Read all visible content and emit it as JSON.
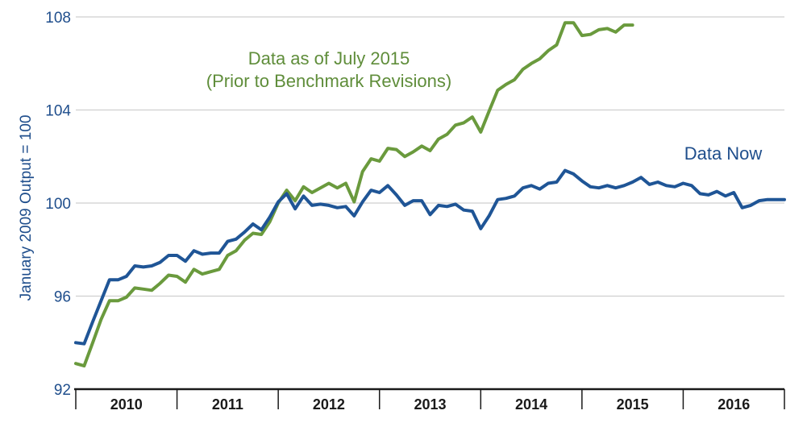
{
  "chart_data": {
    "type": "line",
    "ylabel": "January 2009 Output = 100",
    "ylim": [
      92,
      108
    ],
    "yticks": [
      92,
      96,
      100,
      104,
      108
    ],
    "xlim": [
      2009.5,
      2016.5
    ],
    "year_labels": [
      "2010",
      "2011",
      "2012",
      "2013",
      "2014",
      "2015",
      "2016"
    ],
    "year_ticks": [
      2010,
      2011,
      2012,
      2013,
      2014,
      2015,
      2016
    ],
    "grid": "horizontal",
    "annotations": [
      {
        "lines": [
          "Data as of July 2015",
          "(Prior to Benchmark Revisions)"
        ],
        "color": "#5f8d3a"
      },
      {
        "lines": [
          "Data Now"
        ],
        "color": "#1f4e8c"
      }
    ],
    "series": [
      {
        "name": "Data as of July 2015 (Prior to Benchmark Revisions)",
        "color": "#6a9a3d",
        "x": [
          2009.5,
          2009.583,
          2009.667,
          2009.75,
          2009.833,
          2009.917,
          2010.0,
          2010.083,
          2010.167,
          2010.25,
          2010.333,
          2010.417,
          2010.5,
          2010.583,
          2010.667,
          2010.75,
          2010.833,
          2010.917,
          2011.0,
          2011.083,
          2011.167,
          2011.25,
          2011.333,
          2011.417,
          2011.5,
          2011.583,
          2011.667,
          2011.75,
          2011.833,
          2011.917,
          2012.0,
          2012.083,
          2012.167,
          2012.25,
          2012.333,
          2012.417,
          2012.5,
          2012.583,
          2012.667,
          2012.75,
          2012.833,
          2012.917,
          2013.0,
          2013.083,
          2013.167,
          2013.25,
          2013.333,
          2013.417,
          2013.5,
          2013.583,
          2013.667,
          2013.75,
          2013.833,
          2013.917,
          2014.0,
          2014.083,
          2014.167,
          2014.25,
          2014.333,
          2014.417,
          2014.5,
          2014.583,
          2014.667,
          2014.75,
          2014.833,
          2014.917,
          2015.0
        ],
        "values": [
          93.1,
          93.0,
          94.0,
          95.0,
          95.8,
          95.8,
          95.95,
          96.35,
          96.3,
          96.25,
          96.55,
          96.9,
          96.85,
          96.6,
          97.15,
          96.95,
          97.05,
          97.15,
          97.75,
          97.95,
          98.4,
          98.7,
          98.65,
          99.2,
          100.0,
          100.55,
          100.1,
          100.7,
          100.45,
          100.65,
          100.85,
          100.65,
          100.85,
          100.05,
          101.35,
          101.9,
          101.8,
          102.35,
          102.3,
          102.0,
          102.2,
          102.45,
          102.25,
          102.75,
          102.95,
          103.35,
          103.45,
          103.7,
          103.05,
          103.95,
          104.85,
          105.1,
          105.3,
          105.75,
          106.0,
          106.2,
          106.55,
          106.8,
          107.75,
          107.75,
          107.2,
          107.25,
          107.45,
          107.5,
          107.35,
          107.65,
          107.65
        ]
      },
      {
        "name": "Data Now",
        "color": "#1f5596",
        "x": [
          2009.5,
          2009.583,
          2009.667,
          2009.75,
          2009.833,
          2009.917,
          2010.0,
          2010.083,
          2010.167,
          2010.25,
          2010.333,
          2010.417,
          2010.5,
          2010.583,
          2010.667,
          2010.75,
          2010.833,
          2010.917,
          2011.0,
          2011.083,
          2011.167,
          2011.25,
          2011.333,
          2011.417,
          2011.5,
          2011.583,
          2011.667,
          2011.75,
          2011.833,
          2011.917,
          2012.0,
          2012.083,
          2012.167,
          2012.25,
          2012.333,
          2012.417,
          2012.5,
          2012.583,
          2012.667,
          2012.75,
          2012.833,
          2012.917,
          2013.0,
          2013.083,
          2013.167,
          2013.25,
          2013.333,
          2013.417,
          2013.5,
          2013.583,
          2013.667,
          2013.75,
          2013.833,
          2013.917,
          2014.0,
          2014.083,
          2014.167,
          2014.25,
          2014.333,
          2014.417,
          2014.5,
          2014.583,
          2014.667,
          2014.75,
          2014.833,
          2014.917,
          2015.0,
          2015.083,
          2015.167,
          2015.25,
          2015.333,
          2015.417,
          2015.5,
          2015.583,
          2015.667,
          2015.75,
          2015.833,
          2015.917,
          2016.0,
          2016.083,
          2016.167,
          2016.25,
          2016.333,
          2016.417,
          2016.5
        ],
        "values": [
          94.0,
          93.95,
          94.9,
          95.8,
          96.7,
          96.7,
          96.85,
          97.3,
          97.25,
          97.3,
          97.45,
          97.75,
          97.75,
          97.5,
          97.95,
          97.8,
          97.85,
          97.85,
          98.35,
          98.45,
          98.75,
          99.1,
          98.85,
          99.4,
          100.05,
          100.4,
          99.75,
          100.3,
          99.9,
          99.95,
          99.9,
          99.8,
          99.85,
          99.45,
          100.05,
          100.55,
          100.45,
          100.75,
          100.35,
          99.9,
          100.1,
          100.1,
          99.5,
          99.9,
          99.85,
          99.95,
          99.7,
          99.65,
          98.9,
          99.45,
          100.15,
          100.2,
          100.3,
          100.65,
          100.75,
          100.6,
          100.85,
          100.9,
          101.4,
          101.25,
          100.95,
          100.7,
          100.65,
          100.75,
          100.65,
          100.75,
          100.9,
          101.1,
          100.8,
          100.9,
          100.75,
          100.7,
          100.85,
          100.75,
          100.4,
          100.35,
          100.5,
          100.3,
          100.45,
          99.8,
          99.9,
          100.1,
          100.15,
          100.15,
          100.15
        ]
      }
    ]
  }
}
